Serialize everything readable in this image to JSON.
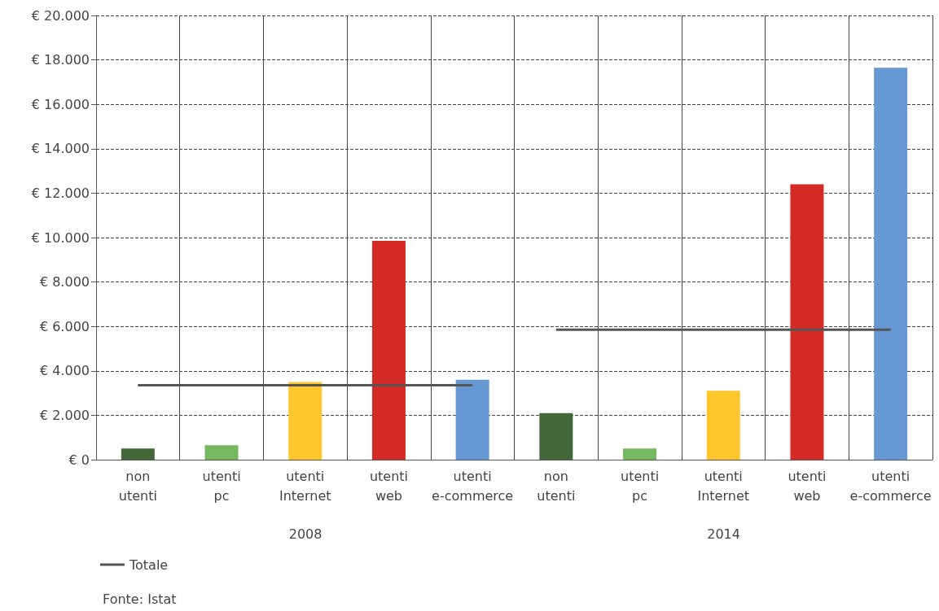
{
  "chart_data": {
    "type": "bar",
    "categories": [
      "non utenti",
      "utenti pc",
      "utenti Internet",
      "utenti web",
      "utenti e-commerce",
      "non utenti",
      "utenti pc",
      "utenti Internet",
      "utenti web",
      "utenti e-commerce"
    ],
    "values": [
      500,
      650,
      3500,
      9850,
      3600,
      2100,
      500,
      3100,
      12400,
      17650
    ],
    "colors": [
      "#43693a",
      "#74b95f",
      "#ffc72c",
      "#d52b26",
      "#6699d3",
      "#43693a",
      "#74b95f",
      "#ffc72c",
      "#d52b26",
      "#6699d3"
    ],
    "series": [
      {
        "name": "Totale",
        "type": "line",
        "color": "#555555",
        "values": [
          3350,
          3350,
          3350,
          3350,
          3350,
          null,
          null,
          null,
          null,
          null
        ]
      },
      {
        "type": "line",
        "color": "#555555",
        "values": [
          null,
          null,
          null,
          null,
          null,
          5850,
          5850,
          5850,
          5850,
          5850
        ]
      }
    ],
    "ylim": [
      0,
      20000
    ],
    "yticks": [
      {
        "value": 0,
        "label": "€ 0"
      },
      {
        "value": 2000,
        "label": "€ 2.000"
      },
      {
        "value": 4000,
        "label": "€ 4.000"
      },
      {
        "value": 6000,
        "label": "€ 6.000"
      },
      {
        "value": 8000,
        "label": "€ 8.000"
      },
      {
        "value": 10000,
        "label": "€ 10.000"
      },
      {
        "value": 12000,
        "label": "€ 12.000"
      },
      {
        "value": 14000,
        "label": "€ 14.000"
      },
      {
        "value": 16000,
        "label": "€ 16.000"
      },
      {
        "value": 18000,
        "label": "€ 18.000"
      },
      {
        "value": 20000,
        "label": "€ 20.000"
      }
    ],
    "grid": true,
    "legend": "bottom left",
    "marker": "none",
    "annotations": [
      "2008",
      "2014",
      "Fonte: Istat"
    ]
  }
}
